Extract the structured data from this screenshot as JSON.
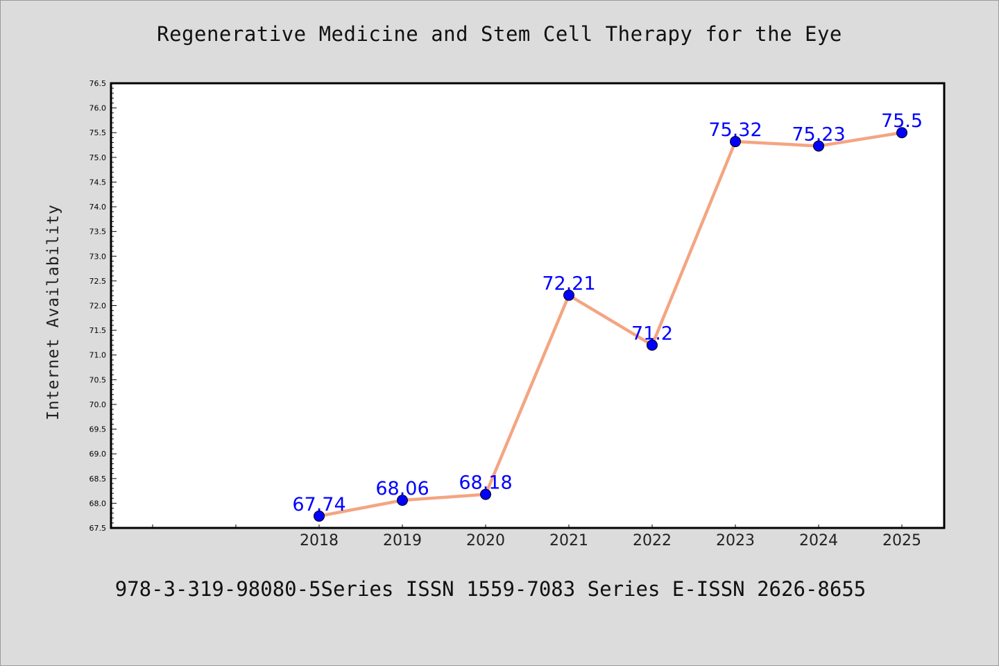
{
  "chart_data": {
    "type": "line",
    "title": "Regenerative Medicine and Stem Cell Therapy for the Eye",
    "xlabel": "",
    "ylabel": "Internet Availability",
    "ylim": [
      67.5,
      76.5
    ],
    "ytick_step": 0.5,
    "ytick_labels": [
      "67.5",
      "68.0",
      "68.5",
      "69.0",
      "69.5",
      "70.0",
      "70.5",
      "71.0",
      "71.5",
      "72.0",
      "72.5",
      "73.0",
      "73.5",
      "74.0",
      "74.5",
      "75.0",
      "75.5",
      "76.0",
      "76.5"
    ],
    "x": [
      "2018",
      "2019",
      "2020",
      "2021",
      "2022",
      "2023",
      "2024",
      "2025"
    ],
    "values": [
      67.74,
      68.06,
      68.18,
      72.21,
      71.2,
      75.32,
      75.23,
      75.5
    ],
    "data_labels": [
      "67.74",
      "68.06",
      "68.18",
      "72.21",
      "71.2",
      "75.32",
      "75.23",
      "75.5"
    ],
    "grid": false,
    "line_color": "#f4a582",
    "marker_color": "#0000ff",
    "label_color": "#0000ff"
  },
  "footer": {
    "text": "978-3-319-98080-5Series ISSN 1559-7083 Series E-ISSN 2626-8655"
  }
}
